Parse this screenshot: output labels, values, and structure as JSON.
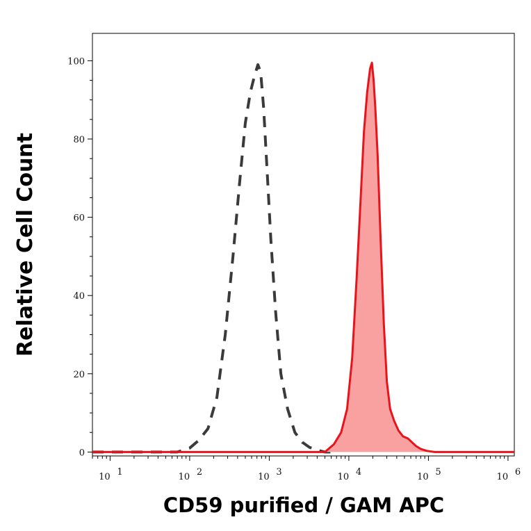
{
  "chart_data": {
    "type": "area",
    "xlabel": "CD59 purified / GAM APC",
    "ylabel": "Relative Cell Count",
    "x_scale": "log",
    "xlim": [
      6,
      1200000
    ],
    "ylim": [
      -1,
      107
    ],
    "x_ticks": [
      {
        "value": 10,
        "base": "10",
        "exp": "1"
      },
      {
        "value": 100,
        "base": "10",
        "exp": "2"
      },
      {
        "value": 1000,
        "base": "10",
        "exp": "3"
      },
      {
        "value": 10000,
        "base": "10",
        "exp": "4"
      },
      {
        "value": 100000,
        "base": "10",
        "exp": "5"
      },
      {
        "value": 1000000,
        "base": "10",
        "exp": "6"
      }
    ],
    "y_ticks": [
      0,
      20,
      40,
      60,
      80,
      100
    ],
    "grid": false,
    "series": [
      {
        "style": "dashed",
        "color": "#3a3a3a",
        "fill": false,
        "x": [
          6,
          70,
          100,
          130,
          170,
          220,
          280,
          350,
          420,
          500,
          580,
          650,
          720,
          780,
          850,
          950,
          1050,
          1200,
          1400,
          1700,
          2100,
          2600,
          3200,
          4000,
          5000,
          6000
        ],
        "y": [
          0,
          0,
          1,
          3,
          6,
          14,
          30,
          50,
          68,
          84,
          92,
          96,
          99,
          97,
          88,
          70,
          54,
          36,
          20,
          11,
          5,
          2.5,
          1.2,
          0.5,
          0,
          0
        ]
      },
      {
        "style": "solid",
        "color": "#e8141b",
        "fill": true,
        "fill_color": "#f9a0a0",
        "x": [
          6,
          5000,
          6500,
          8000,
          9500,
          11000,
          12500,
          14000,
          15500,
          17000,
          18500,
          19500,
          20500,
          21500,
          23000,
          25000,
          27500,
          30000,
          33000,
          37000,
          42000,
          48000,
          55000,
          62000,
          70000,
          80000,
          95000,
          120000,
          150000,
          1200000
        ],
        "y": [
          0,
          0,
          2,
          5,
          11,
          24,
          44,
          64,
          82,
          92,
          98,
          99.5,
          95,
          88,
          76,
          55,
          33,
          18,
          11,
          8,
          5.5,
          4,
          3.5,
          2.5,
          1.5,
          0.8,
          0.3,
          0,
          0,
          0
        ]
      }
    ]
  }
}
